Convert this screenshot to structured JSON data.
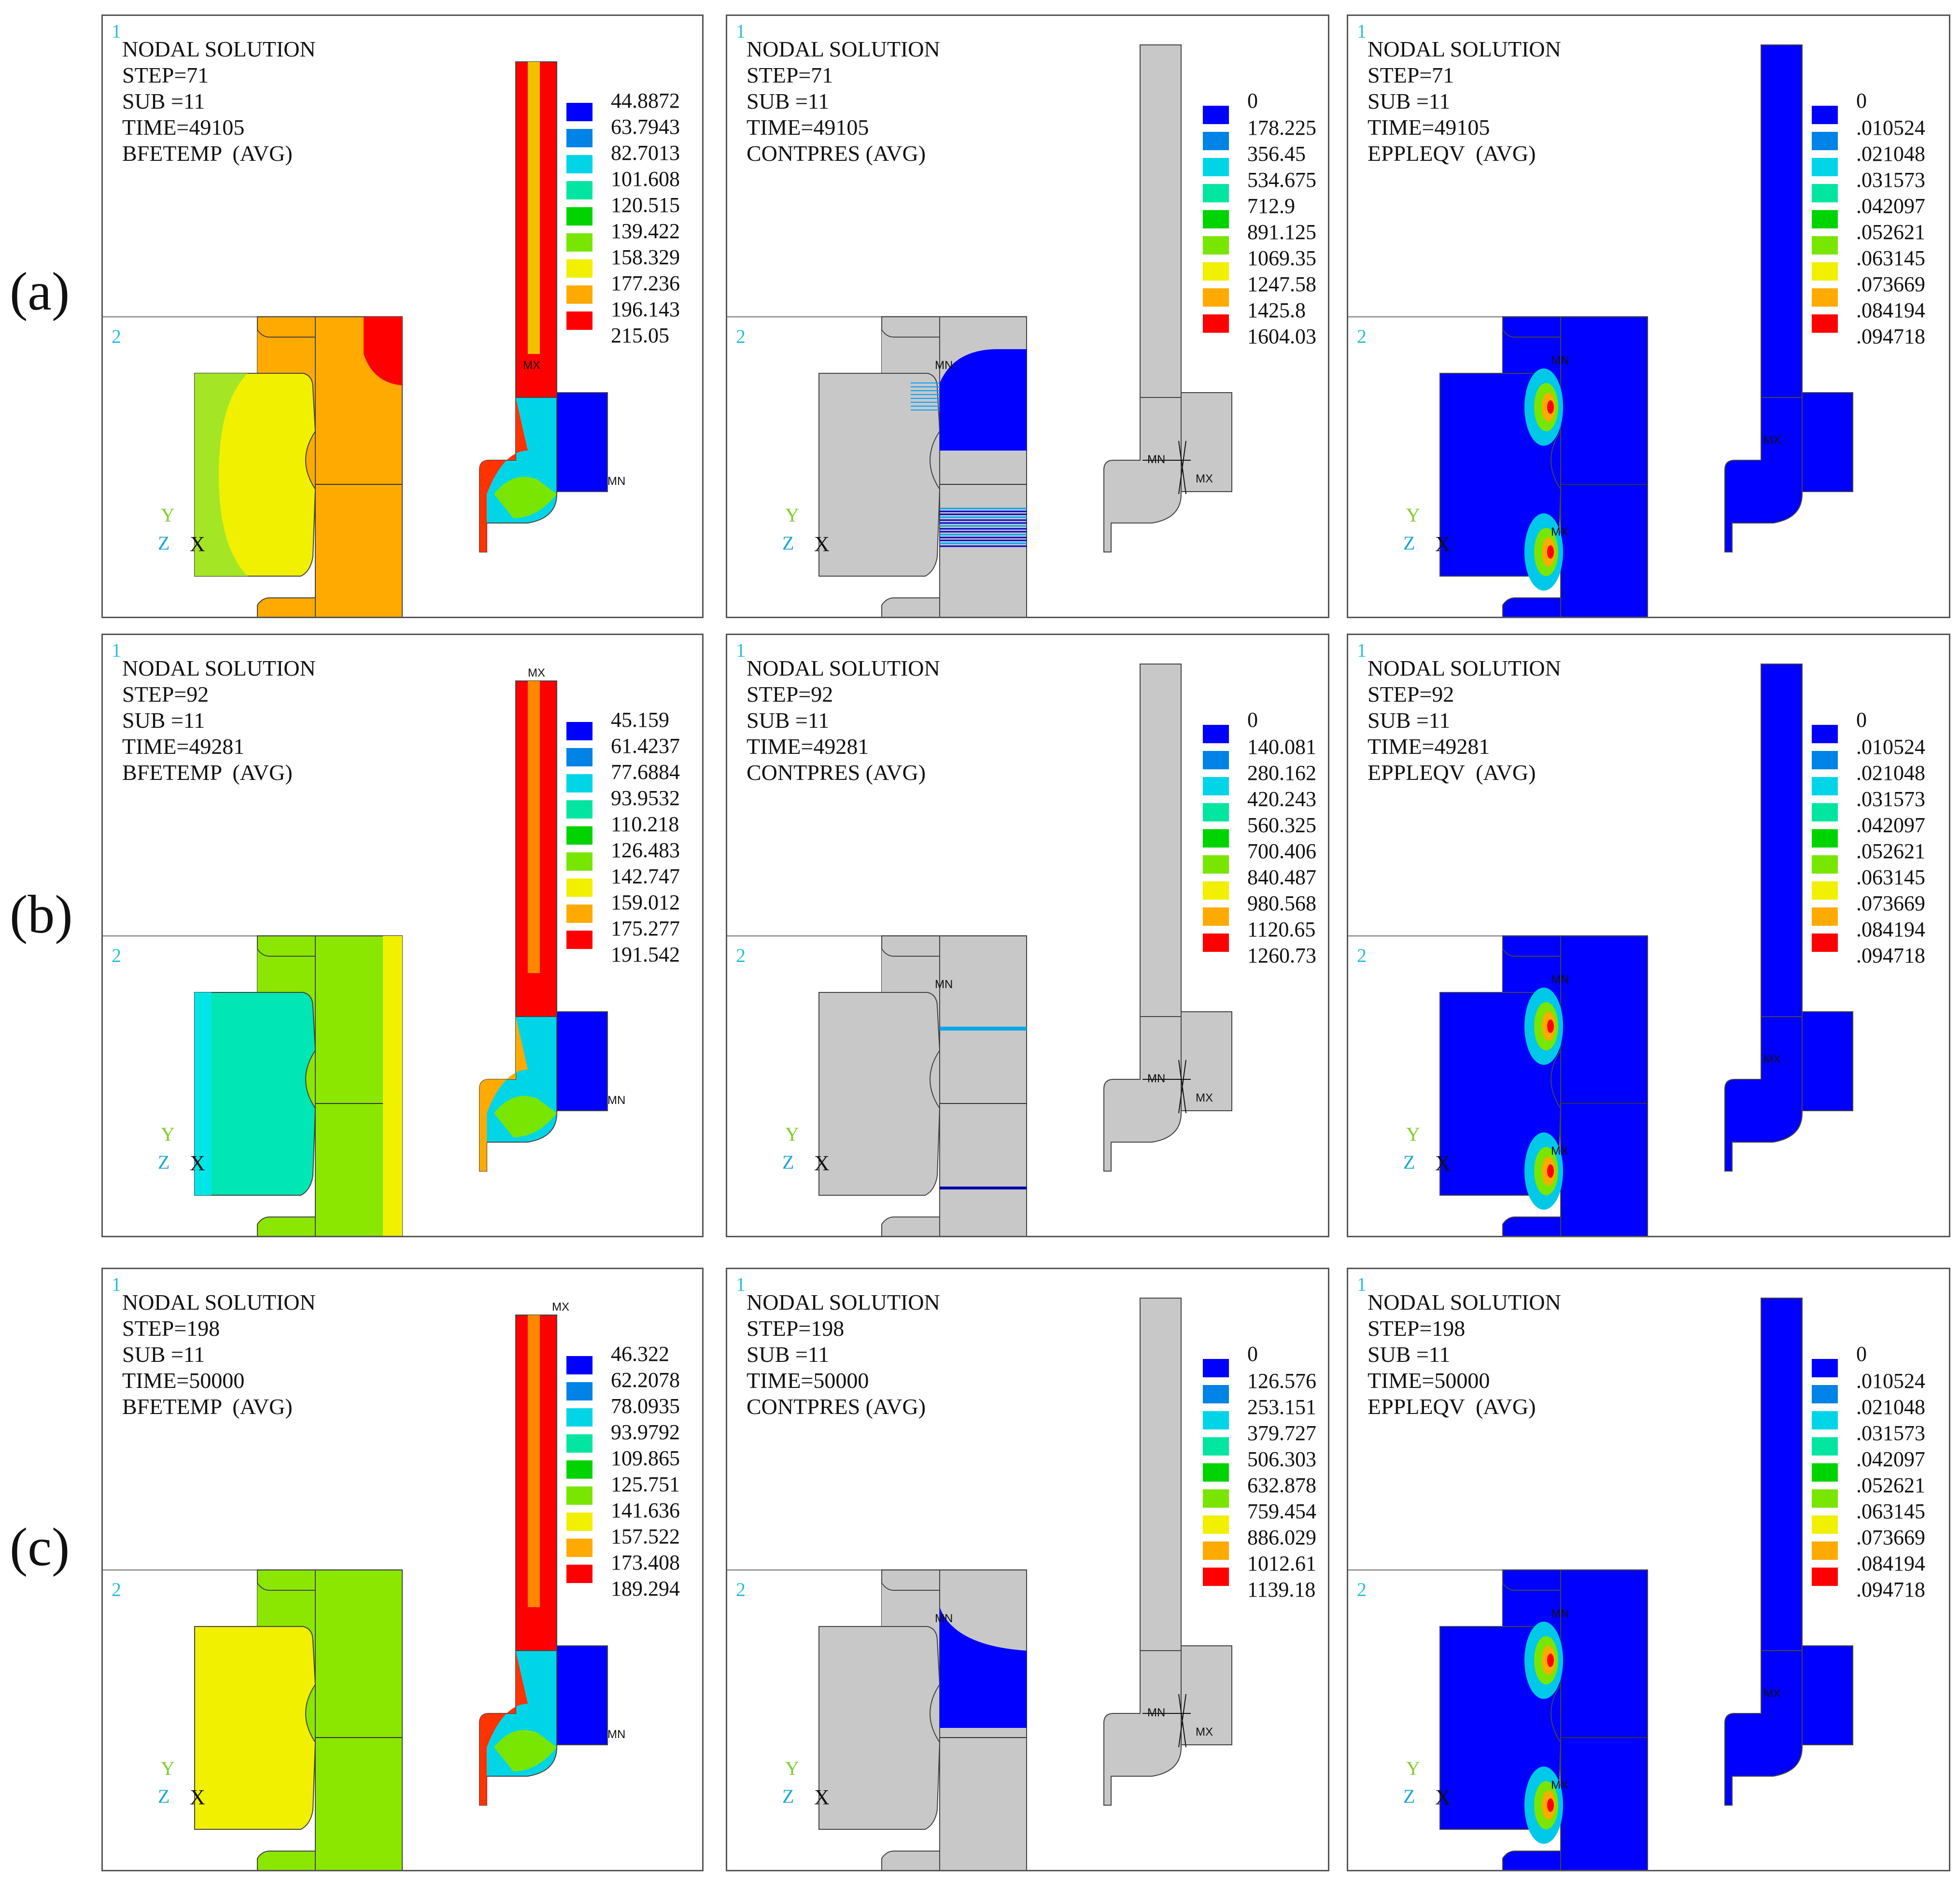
{
  "rows": [
    {
      "label": "(a)",
      "panels": [
        {
          "kind": "temp",
          "lines": [
            "NODAL SOLUTION",
            "STEP=71",
            "SUB =11",
            "TIME=49105",
            "BFETEMP  (AVG)"
          ],
          "first_value": "",
          "values": [
            "44.8872",
            "63.7943",
            "82.7013",
            "101.608",
            "120.515",
            "139.422",
            "158.329",
            "177.236",
            "196.143",
            "215.05"
          ],
          "markers": [
            "MX",
            "MN"
          ]
        },
        {
          "kind": "contact",
          "lines": [
            "NODAL SOLUTION",
            "STEP=71",
            "SUB =11",
            "TIME=49105",
            "CONTPRES (AVG)"
          ],
          "first_value": "0",
          "values": [
            "178.225",
            "356.45",
            "534.675",
            "712.9",
            "891.125",
            "1069.35",
            "1247.58",
            "1425.8",
            "1604.03"
          ],
          "markers": [
            "MN",
            "MN",
            "MX"
          ]
        },
        {
          "kind": "strain",
          "lines": [
            "NODAL SOLUTION",
            "STEP=71",
            "SUB =11",
            "TIME=49105",
            "EPPLEQV  (AVG)"
          ],
          "first_value": "0",
          "values": [
            ".010524",
            ".021048",
            ".031573",
            ".042097",
            ".052621",
            ".063145",
            ".073669",
            ".084194",
            ".094718"
          ],
          "markers": [
            "MN",
            "MX",
            "MX"
          ]
        }
      ]
    },
    {
      "label": "(b)",
      "panels": [
        {
          "kind": "temp",
          "lines": [
            "NODAL SOLUTION",
            "STEP=92",
            "SUB =11",
            "TIME=49281",
            "BFETEMP  (AVG)"
          ],
          "first_value": "",
          "values": [
            "45.159",
            "61.4237",
            "77.6884",
            "93.9532",
            "110.218",
            "126.483",
            "142.747",
            "159.012",
            "175.277",
            "191.542"
          ],
          "markers": [
            "MX",
            "MN"
          ]
        },
        {
          "kind": "contact",
          "lines": [
            "NODAL SOLUTION",
            "STEP=92",
            "SUB =11",
            "TIME=49281",
            "CONTPRES (AVG)"
          ],
          "first_value": "0",
          "values": [
            "140.081",
            "280.162",
            "420.243",
            "560.325",
            "700.406",
            "840.487",
            "980.568",
            "1120.65",
            "1260.73"
          ],
          "markers": [
            "MN",
            "MN",
            "MX"
          ]
        },
        {
          "kind": "strain",
          "lines": [
            "NODAL SOLUTION",
            "STEP=92",
            "SUB =11",
            "TIME=49281",
            "EPPLEQV  (AVG)"
          ],
          "first_value": "0",
          "values": [
            ".010524",
            ".021048",
            ".031573",
            ".042097",
            ".052621",
            ".063145",
            ".073669",
            ".084194",
            ".094718"
          ],
          "markers": [
            "MN",
            "MX",
            "MX"
          ]
        }
      ]
    },
    {
      "label": "(c)",
      "panels": [
        {
          "kind": "temp",
          "lines": [
            "NODAL SOLUTION",
            "STEP=198",
            "SUB =11",
            "TIME=50000",
            "BFETEMP  (AVG)"
          ],
          "first_value": "",
          "values": [
            "46.322",
            "62.2078",
            "78.0935",
            "93.9792",
            "109.865",
            "125.751",
            "141.636",
            "157.522",
            "173.408",
            "189.294"
          ],
          "markers": [
            "MX",
            "MN"
          ]
        },
        {
          "kind": "contact",
          "lines": [
            "NODAL SOLUTION",
            "STEP=198",
            "SUB =11",
            "TIME=50000",
            "CONTPRES (AVG)"
          ],
          "first_value": "0",
          "values": [
            "126.576",
            "253.151",
            "379.727",
            "506.303",
            "632.878",
            "759.454",
            "886.029",
            "1012.61",
            "1139.18"
          ],
          "markers": [
            "MN",
            "MN",
            "MX"
          ]
        },
        {
          "kind": "strain",
          "lines": [
            "NODAL SOLUTION",
            "STEP=198",
            "SUB =11",
            "TIME=50000",
            "EPPLEQV  (AVG)"
          ],
          "first_value": "0",
          "values": [
            ".010524",
            ".021048",
            ".031573",
            ".042097",
            ".052621",
            ".063145",
            ".073669",
            ".084194",
            ".094718"
          ],
          "markers": [
            "MN",
            "MX",
            "MX"
          ]
        }
      ]
    }
  ],
  "window_numbers": [
    "1",
    "2"
  ],
  "triad": {
    "y": "Y",
    "z": "Z",
    "x": "X"
  },
  "legend_colors": [
    "#0000ff",
    "#0083e6",
    "#00d5e8",
    "#00e6a1",
    "#00d400",
    "#78e600",
    "#f0f000",
    "#ffaa00",
    "#ff0000"
  ],
  "model_colors": {
    "gray": "#c8c8c8",
    "blue": "#0000ff"
  }
}
